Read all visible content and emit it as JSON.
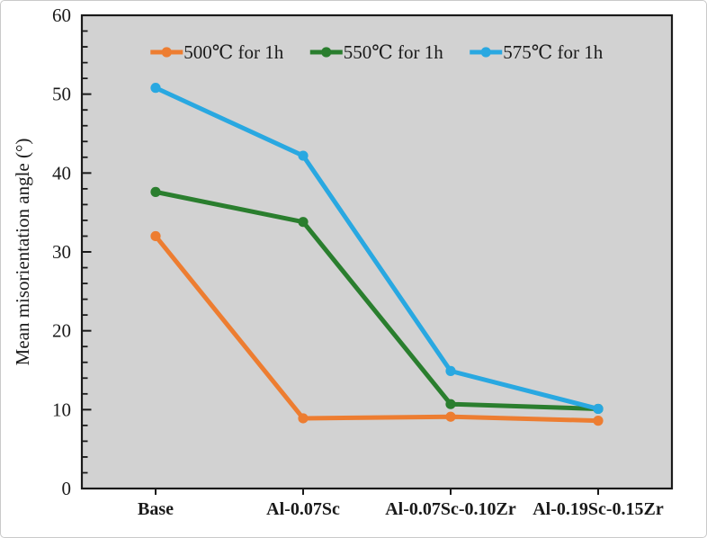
{
  "chart_data": {
    "type": "line",
    "title": "",
    "categories": [
      "Base",
      "Al-0.07Sc",
      "Al-0.07Sc-0.10Zr",
      "Al-0.19Sc-0.15Zr"
    ],
    "series": [
      {
        "name": "500℃ for 1h",
        "color": "#ED7D31",
        "values": [
          32.0,
          8.9,
          9.1,
          8.6
        ]
      },
      {
        "name": "550℃ for 1h",
        "color": "#2A7E2E",
        "values": [
          37.6,
          33.8,
          10.7,
          10.1
        ]
      },
      {
        "name": "575℃ for 1h",
        "color": "#29A8E1",
        "values": [
          50.8,
          42.2,
          14.9,
          10.1
        ]
      }
    ],
    "xlabel": "",
    "ylabel": "Mean misorientation angle (°)",
    "ylim": [
      0,
      60
    ],
    "y_major_ticks": [
      "0",
      "10",
      "20",
      "30",
      "40",
      "50",
      "60"
    ],
    "y_major_step": 10,
    "y_minor_step": 2,
    "grid": false,
    "legend_position": "top-center-inside",
    "marker": "circle",
    "colors": {
      "plot_background": "#D2D2D2",
      "axis": "#1a1a1a",
      "page_background": "#ffffff"
    }
  }
}
